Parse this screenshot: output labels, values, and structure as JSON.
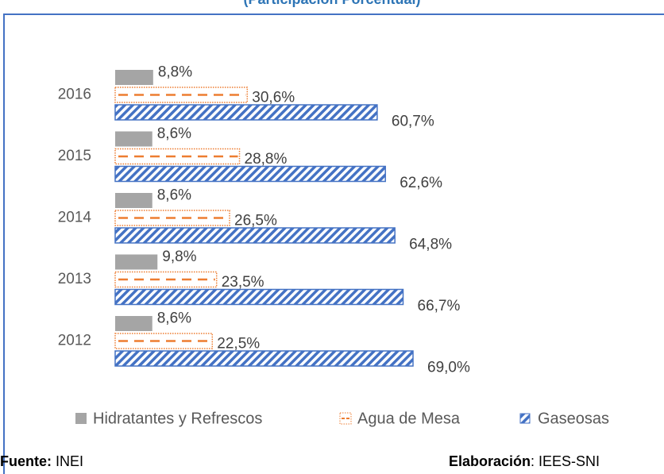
{
  "chart_data": {
    "type": "hbar",
    "title": "(Participación Porcentual)",
    "categories": [
      "2012",
      "2013",
      "2014",
      "2015",
      "2016"
    ],
    "series": [
      {
        "name": "Hidratantes y Refrescos",
        "color": "#a5a5a5",
        "pattern": "solid",
        "values": [
          8.6,
          9.8,
          8.6,
          8.6,
          8.8
        ],
        "value_labels": [
          "8,6%",
          "9,8%",
          "8,6%",
          "8,6%",
          "8,8%"
        ]
      },
      {
        "name": "Agua de Mesa",
        "color": "#ed7d31",
        "pattern": "dashed",
        "values": [
          22.5,
          23.5,
          26.5,
          28.8,
          30.6
        ],
        "value_labels": [
          "22,5%",
          "23,5%",
          "26,5%",
          "28,8%",
          "30,6%"
        ]
      },
      {
        "name": "Gaseosas",
        "color": "#4472c4",
        "pattern": "hatch",
        "values": [
          69.0,
          66.7,
          64.8,
          62.6,
          60.7
        ],
        "value_labels": [
          "69,0%",
          "66,7%",
          "64,8%",
          "62,6%",
          "60,7%"
        ]
      }
    ],
    "legend": "bottom",
    "footer": {
      "source_label": "Fuente:",
      "source": "INEI",
      "credit_label": "Elaboración",
      "credit": ": IEES-SNI"
    }
  }
}
